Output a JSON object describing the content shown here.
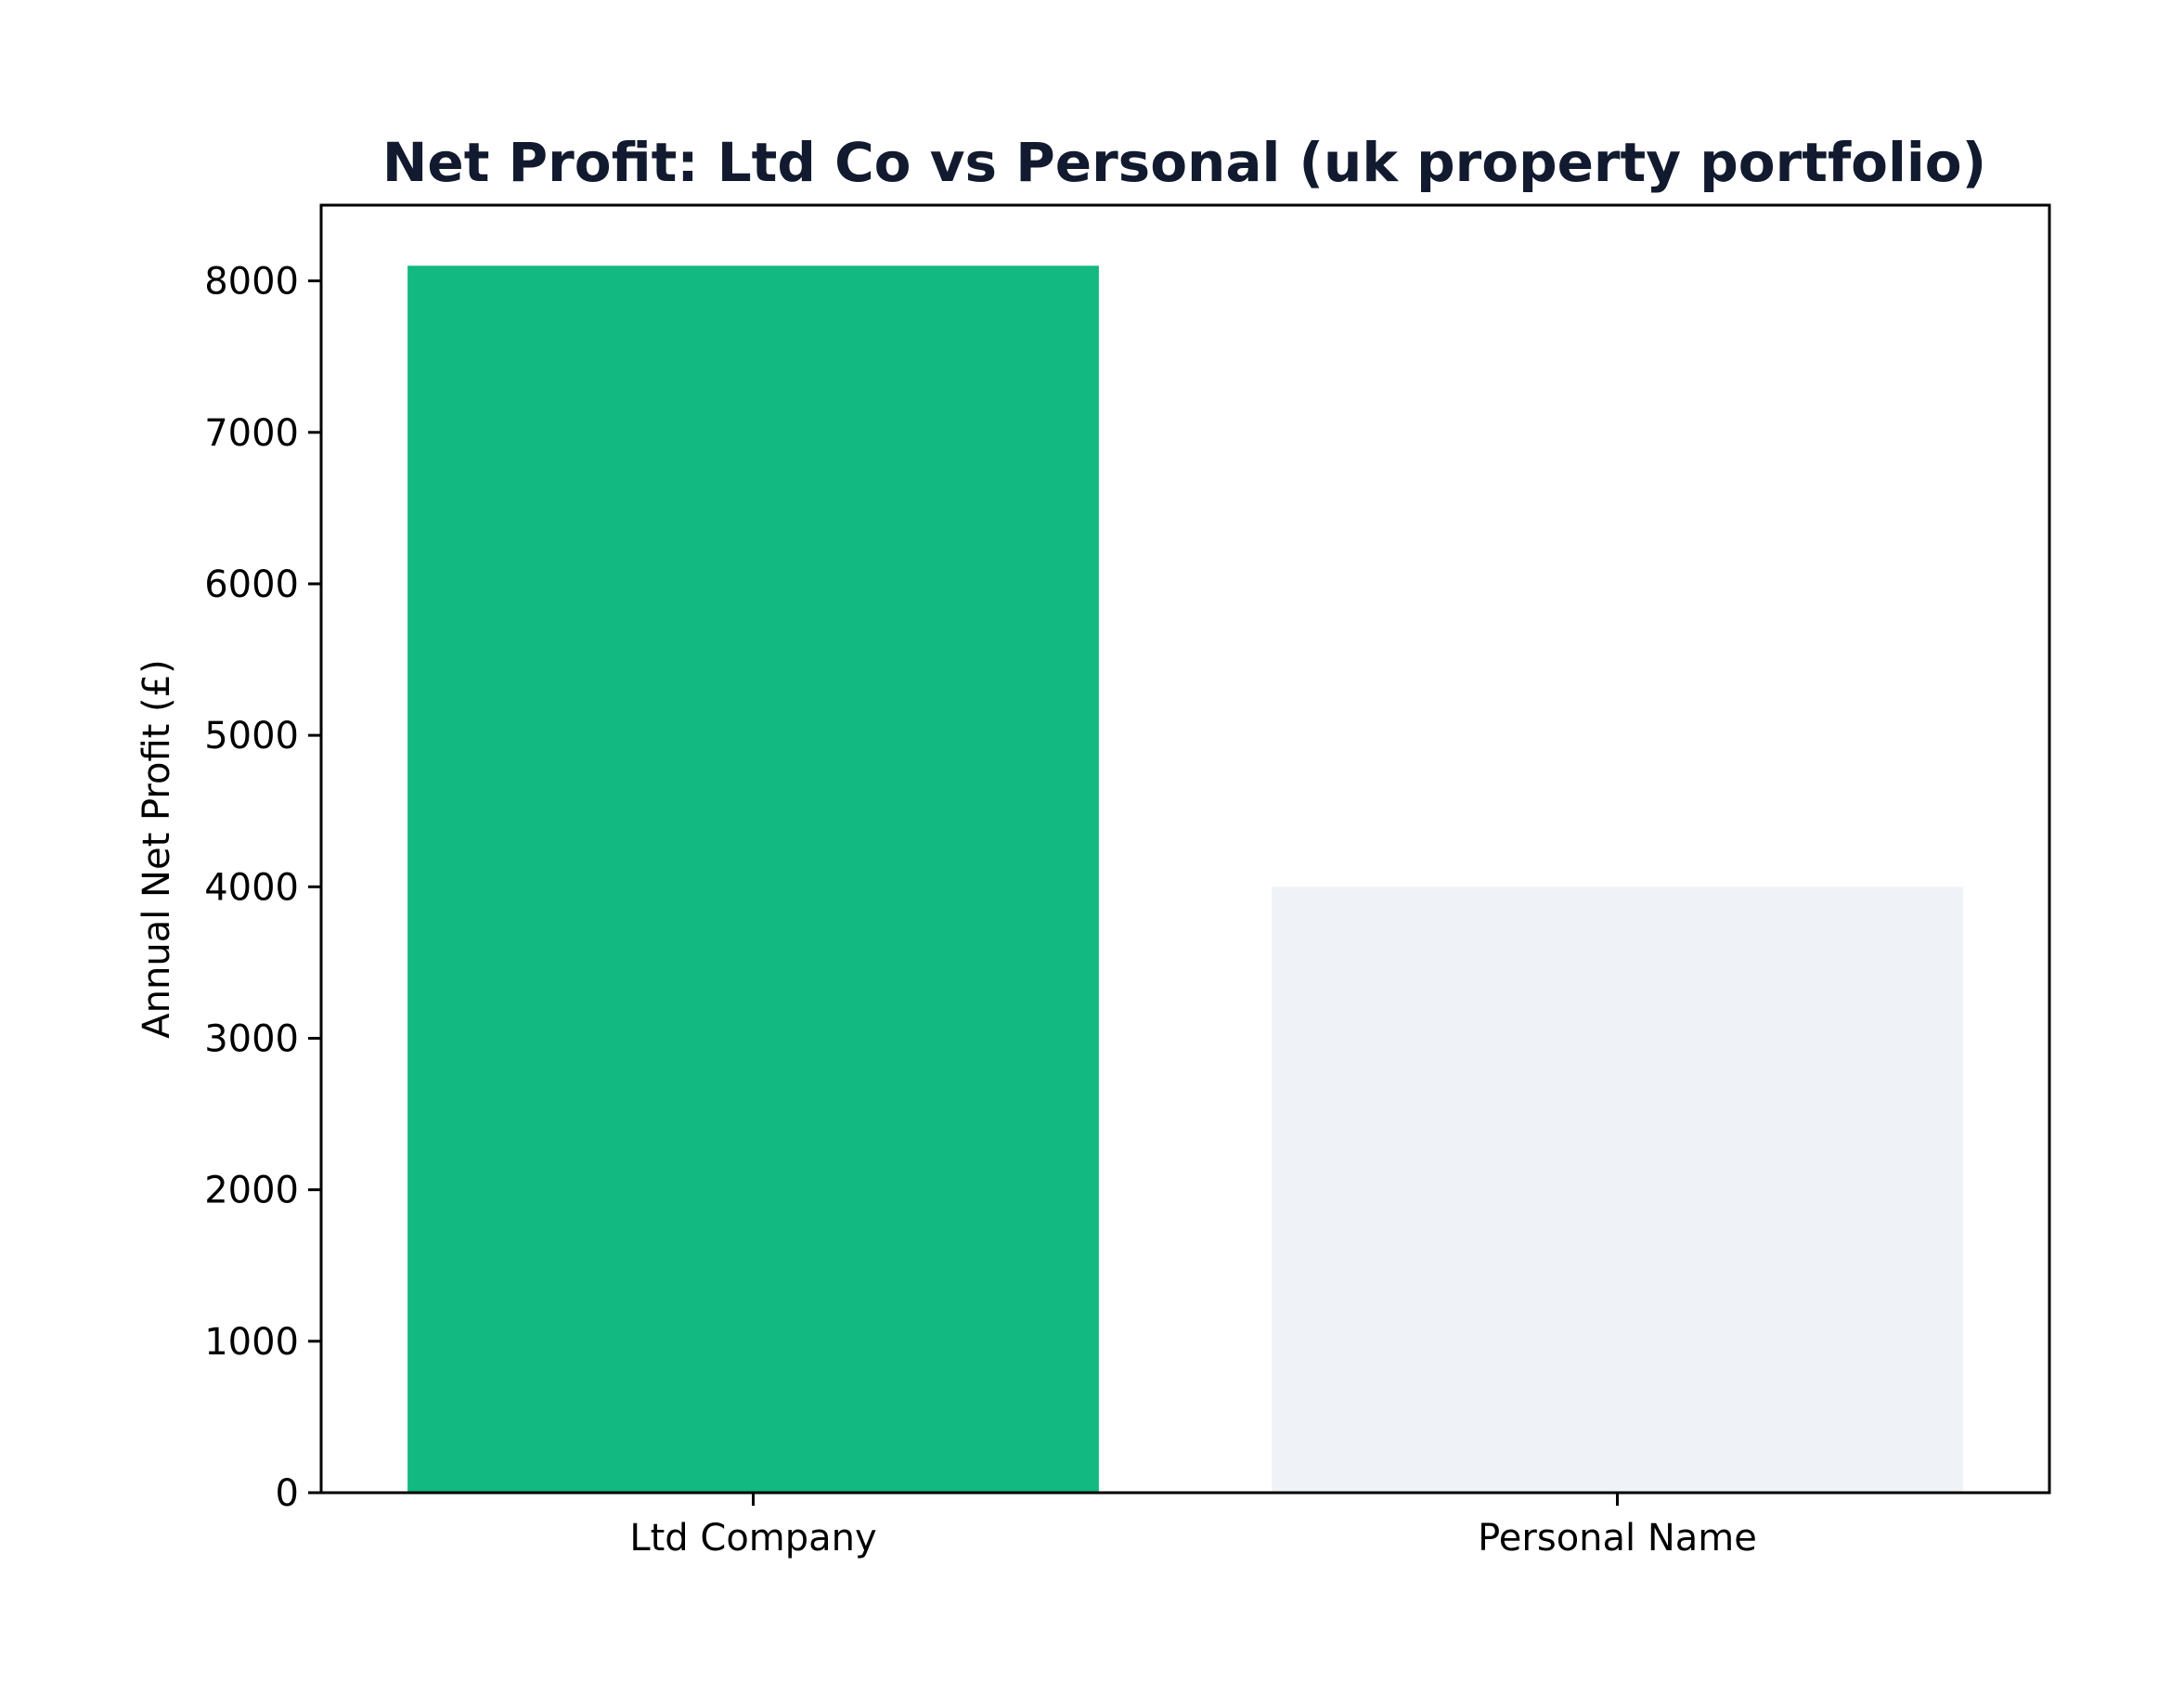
{
  "chart_data": {
    "type": "bar",
    "title": "Net Profit: Ltd Co vs Personal (uk property portfolio)",
    "xlabel": "",
    "ylabel": "Annual Net Profit (£)",
    "categories": [
      "Ltd Company",
      "Personal Name"
    ],
    "values": [
      8100,
      4000
    ],
    "bar_colors": [
      "#12b981",
      "#eff3f8"
    ],
    "title_color": "#111a2e",
    "ylim": [
      0,
      8500
    ],
    "yticks": [
      0,
      1000,
      2000,
      3000,
      4000,
      5000,
      6000,
      7000,
      8000
    ],
    "grid": false,
    "legend": "none"
  }
}
